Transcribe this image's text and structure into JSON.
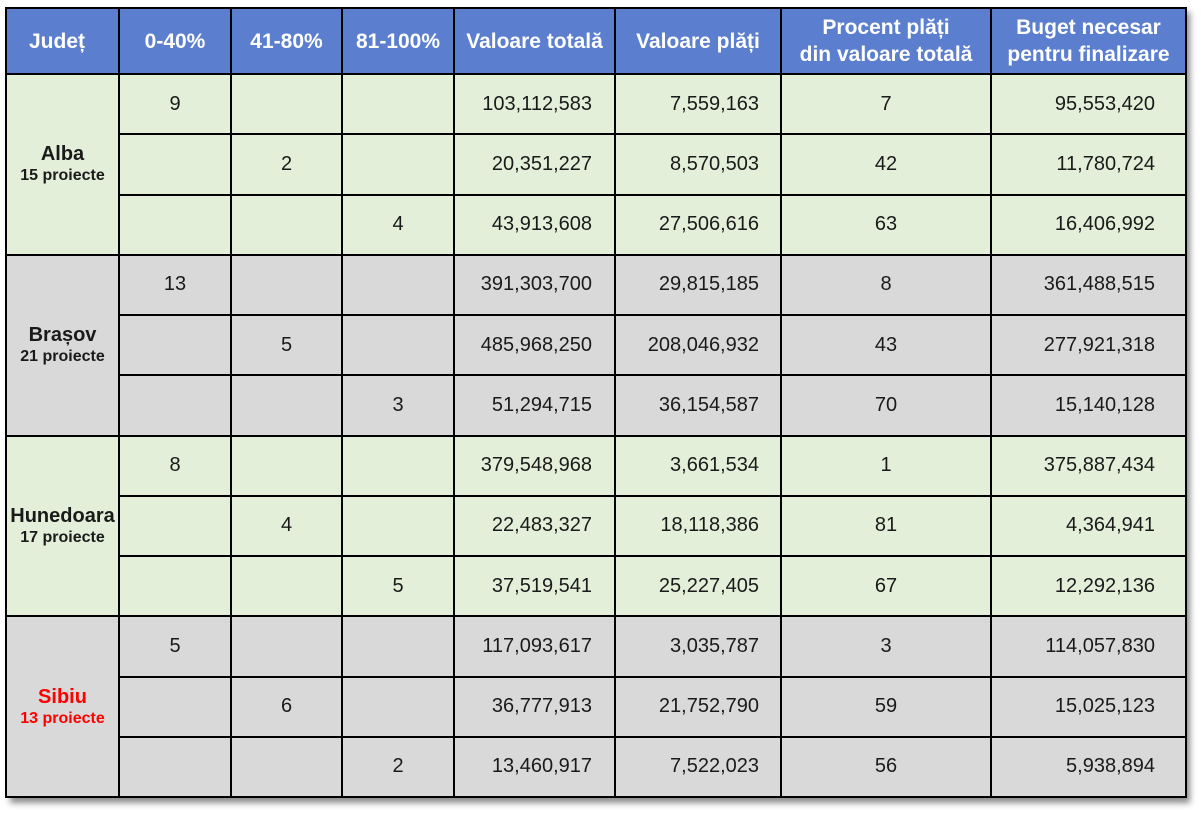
{
  "headers": {
    "judet": "Județ",
    "c1": "0-40%",
    "c2": "41-80%",
    "c3": "81-100%",
    "valoare_totala": "Valoare totală",
    "valoare_plati": "Valoare plăți",
    "procent_line1": "Procent plăți",
    "procent_line2": "din valoare totală",
    "buget_line1": "Buget necesar",
    "buget_line2": "pentru finalizare"
  },
  "counties": [
    {
      "name": "Alba",
      "projects": "15 proiecte",
      "rows": [
        {
          "c1": "9",
          "c2": "",
          "c3": "",
          "total": "103,112,583",
          "plati": "7,559,163",
          "procent": "7",
          "buget": "95,553,420"
        },
        {
          "c1": "",
          "c2": "2",
          "c3": "",
          "total": "20,351,227",
          "plati": "8,570,503",
          "procent": "42",
          "buget": "11,780,724"
        },
        {
          "c1": "",
          "c2": "",
          "c3": "4",
          "total": "43,913,608",
          "plati": "27,506,616",
          "procent": "63",
          "buget": "16,406,992"
        }
      ]
    },
    {
      "name": "Brașov",
      "projects": "21 proiecte",
      "rows": [
        {
          "c1": "13",
          "c2": "",
          "c3": "",
          "total": "391,303,700",
          "plati": "29,815,185",
          "procent": "8",
          "buget": "361,488,515"
        },
        {
          "c1": "",
          "c2": "5",
          "c3": "",
          "total": "485,968,250",
          "plati": "208,046,932",
          "procent": "43",
          "buget": "277,921,318"
        },
        {
          "c1": "",
          "c2": "",
          "c3": "3",
          "total": "51,294,715",
          "plati": "36,154,587",
          "procent": "70",
          "buget": "15,140,128"
        }
      ]
    },
    {
      "name": "Hunedoara",
      "projects": "17 proiecte",
      "rows": [
        {
          "c1": "8",
          "c2": "",
          "c3": "",
          "total": "379,548,968",
          "plati": "3,661,534",
          "procent": "1",
          "buget": "375,887,434"
        },
        {
          "c1": "",
          "c2": "4",
          "c3": "",
          "total": "22,483,327",
          "plati": "18,118,386",
          "procent": "81",
          "buget": "4,364,941"
        },
        {
          "c1": "",
          "c2": "",
          "c3": "5",
          "total": "37,519,541",
          "plati": "25,227,405",
          "procent": "67",
          "buget": "12,292,136"
        }
      ]
    },
    {
      "name": "Sibiu",
      "projects": "13 proiecte",
      "rows": [
        {
          "c1": "5",
          "c2": "",
          "c3": "",
          "total": "117,093,617",
          "plati": "3,035,787",
          "procent": "3",
          "buget": "114,057,830"
        },
        {
          "c1": "",
          "c2": "6",
          "c3": "",
          "total": "36,777,913",
          "plati": "21,752,790",
          "procent": "59",
          "buget": "15,025,123"
        },
        {
          "c1": "",
          "c2": "",
          "c3": "2",
          "total": "13,460,917",
          "plati": "7,522,023",
          "procent": "56",
          "buget": "5,938,894"
        }
      ]
    }
  ],
  "colors": {
    "header_bg": "#5b7fce",
    "green_group": "#e3efd9",
    "gray_group": "#d9d9d9",
    "highlight_county": "#ff0000"
  }
}
